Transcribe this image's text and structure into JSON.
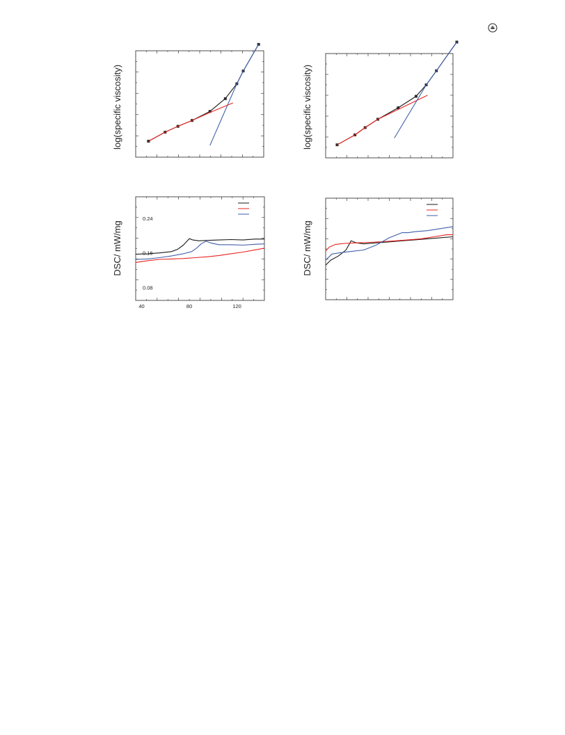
{
  "corner_icon": "recycle-logo-icon",
  "colors": {
    "black": "#1a1a1a",
    "red": "#e8221e",
    "blue": "#3f5ea8",
    "marker": "#2a2a2a"
  },
  "chart_data": [
    {
      "id": "viscosity-left",
      "type": "line",
      "xlabel": "",
      "ylabel": "log(specific viscosity)",
      "xlim": [
        0,
        10
      ],
      "ylim": [
        0,
        10
      ],
      "grid": false,
      "series": [
        {
          "color": "black",
          "markers": true,
          "x": [
            1,
            2.3,
            3.3,
            4.4,
            5.8,
            7.0,
            7.9,
            8.4,
            9.6
          ],
          "y": [
            1.5,
            2.35,
            2.9,
            3.45,
            4.3,
            5.5,
            6.9,
            8.1,
            10.6
          ]
        },
        {
          "color": "red",
          "markers": false,
          "x": [
            1,
            2.3,
            3.3,
            4.4,
            5.8,
            7.6
          ],
          "y": [
            1.5,
            2.35,
            2.9,
            3.45,
            4.2,
            5.1
          ]
        },
        {
          "color": "blue",
          "markers": false,
          "x": [
            5.8,
            7.9,
            8.4,
            9.6
          ],
          "y": [
            1.1,
            6.9,
            8.1,
            10.6
          ]
        }
      ]
    },
    {
      "id": "viscosity-right",
      "type": "line",
      "xlabel": "",
      "ylabel": "log(specific viscosity)",
      "xlim": [
        0,
        10
      ],
      "ylim": [
        0,
        10
      ],
      "grid": false,
      "series": [
        {
          "color": "black",
          "markers": true,
          "x": [
            0.9,
            2.3,
            3.1,
            4.1,
            5.7,
            7.1,
            7.9,
            8.7,
            10.3
          ],
          "y": [
            1.25,
            2.2,
            2.9,
            3.7,
            4.8,
            5.9,
            7.0,
            8.35,
            11.1
          ]
        },
        {
          "color": "red",
          "markers": false,
          "x": [
            0.9,
            2.3,
            3.1,
            4.1,
            8.0
          ],
          "y": [
            1.25,
            2.2,
            2.9,
            3.7,
            6.0
          ]
        },
        {
          "color": "blue",
          "markers": false,
          "x": [
            5.4,
            7.9,
            8.7,
            10.3
          ],
          "y": [
            1.9,
            7.0,
            8.35,
            11.1
          ]
        }
      ]
    },
    {
      "id": "dsc-left",
      "type": "line",
      "xlabel": "",
      "ylabel": "DSC/ mW/mg",
      "xlim": [
        35,
        143
      ],
      "ylim": [
        0.05,
        0.29
      ],
      "xticks": [
        40,
        80,
        120
      ],
      "yticks": [
        0.08,
        0.16,
        0.24
      ],
      "xticklabels": [
        "40",
        "80",
        "120"
      ],
      "yticklabels": [
        "0.08",
        "0.16",
        "0.24"
      ],
      "legend": "top-right",
      "legend_entries": [
        {
          "color": "black",
          "label": ""
        },
        {
          "color": "red",
          "label": ""
        },
        {
          "color": "blue",
          "label": ""
        }
      ],
      "grid": false,
      "series": [
        {
          "color": "black",
          "x": [
            35,
            45,
            55,
            65,
            70,
            75,
            78,
            80,
            83,
            88,
            95,
            105,
            115,
            125,
            135,
            143
          ],
          "y": [
            0.157,
            0.158,
            0.16,
            0.163,
            0.168,
            0.178,
            0.187,
            0.193,
            0.19,
            0.188,
            0.189,
            0.19,
            0.191,
            0.19,
            0.192,
            0.192
          ]
        },
        {
          "color": "red",
          "x": [
            35,
            45,
            55,
            65,
            75,
            85,
            95,
            105,
            115,
            125,
            135,
            143
          ],
          "y": [
            0.138,
            0.142,
            0.145,
            0.146,
            0.147,
            0.149,
            0.151,
            0.154,
            0.158,
            0.162,
            0.167,
            0.171
          ]
        },
        {
          "color": "blue",
          "x": [
            35,
            45,
            55,
            65,
            75,
            82,
            86,
            90,
            94,
            98,
            105,
            115,
            125,
            135,
            143
          ],
          "y": [
            0.145,
            0.146,
            0.149,
            0.153,
            0.158,
            0.163,
            0.171,
            0.181,
            0.187,
            0.183,
            0.179,
            0.179,
            0.178,
            0.18,
            0.181
          ]
        }
      ]
    },
    {
      "id": "dsc-right",
      "type": "line",
      "xlabel": "",
      "ylabel": "DSC/ mW/mg",
      "xlim": [
        0,
        10
      ],
      "ylim": [
        0,
        10
      ],
      "legend": "top-right",
      "legend_entries": [
        {
          "color": "black",
          "label": ""
        },
        {
          "color": "red",
          "label": ""
        },
        {
          "color": "blue",
          "label": ""
        }
      ],
      "grid": false,
      "series": [
        {
          "color": "black",
          "x": [
            0,
            0.4,
            1.0,
            1.6,
            2.0,
            2.4,
            3.0,
            4.0,
            5.0,
            6.0,
            7.0,
            8.0,
            9.0,
            10.0
          ],
          "y": [
            3.4,
            3.9,
            4.3,
            4.9,
            5.8,
            5.6,
            5.5,
            5.6,
            5.7,
            5.8,
            5.9,
            6.0,
            6.1,
            6.2
          ]
        },
        {
          "color": "red",
          "x": [
            0,
            0.3,
            0.8,
            1.5,
            2.5,
            3.5,
            4.5,
            5.5,
            6.5,
            7.5,
            8.5,
            9.5,
            10.0
          ],
          "y": [
            4.8,
            5.2,
            5.45,
            5.55,
            5.6,
            5.65,
            5.72,
            5.8,
            5.9,
            6.0,
            6.2,
            6.4,
            6.4
          ]
        },
        {
          "color": "blue",
          "x": [
            0,
            0.5,
            1.0,
            2.0,
            3.0,
            4.0,
            5.0,
            6.0,
            6.5,
            7.0,
            8.0,
            9.0,
            10.0
          ],
          "y": [
            3.9,
            4.5,
            4.6,
            4.75,
            4.9,
            5.4,
            6.1,
            6.6,
            6.6,
            6.7,
            6.8,
            7.0,
            7.2
          ]
        }
      ]
    }
  ]
}
